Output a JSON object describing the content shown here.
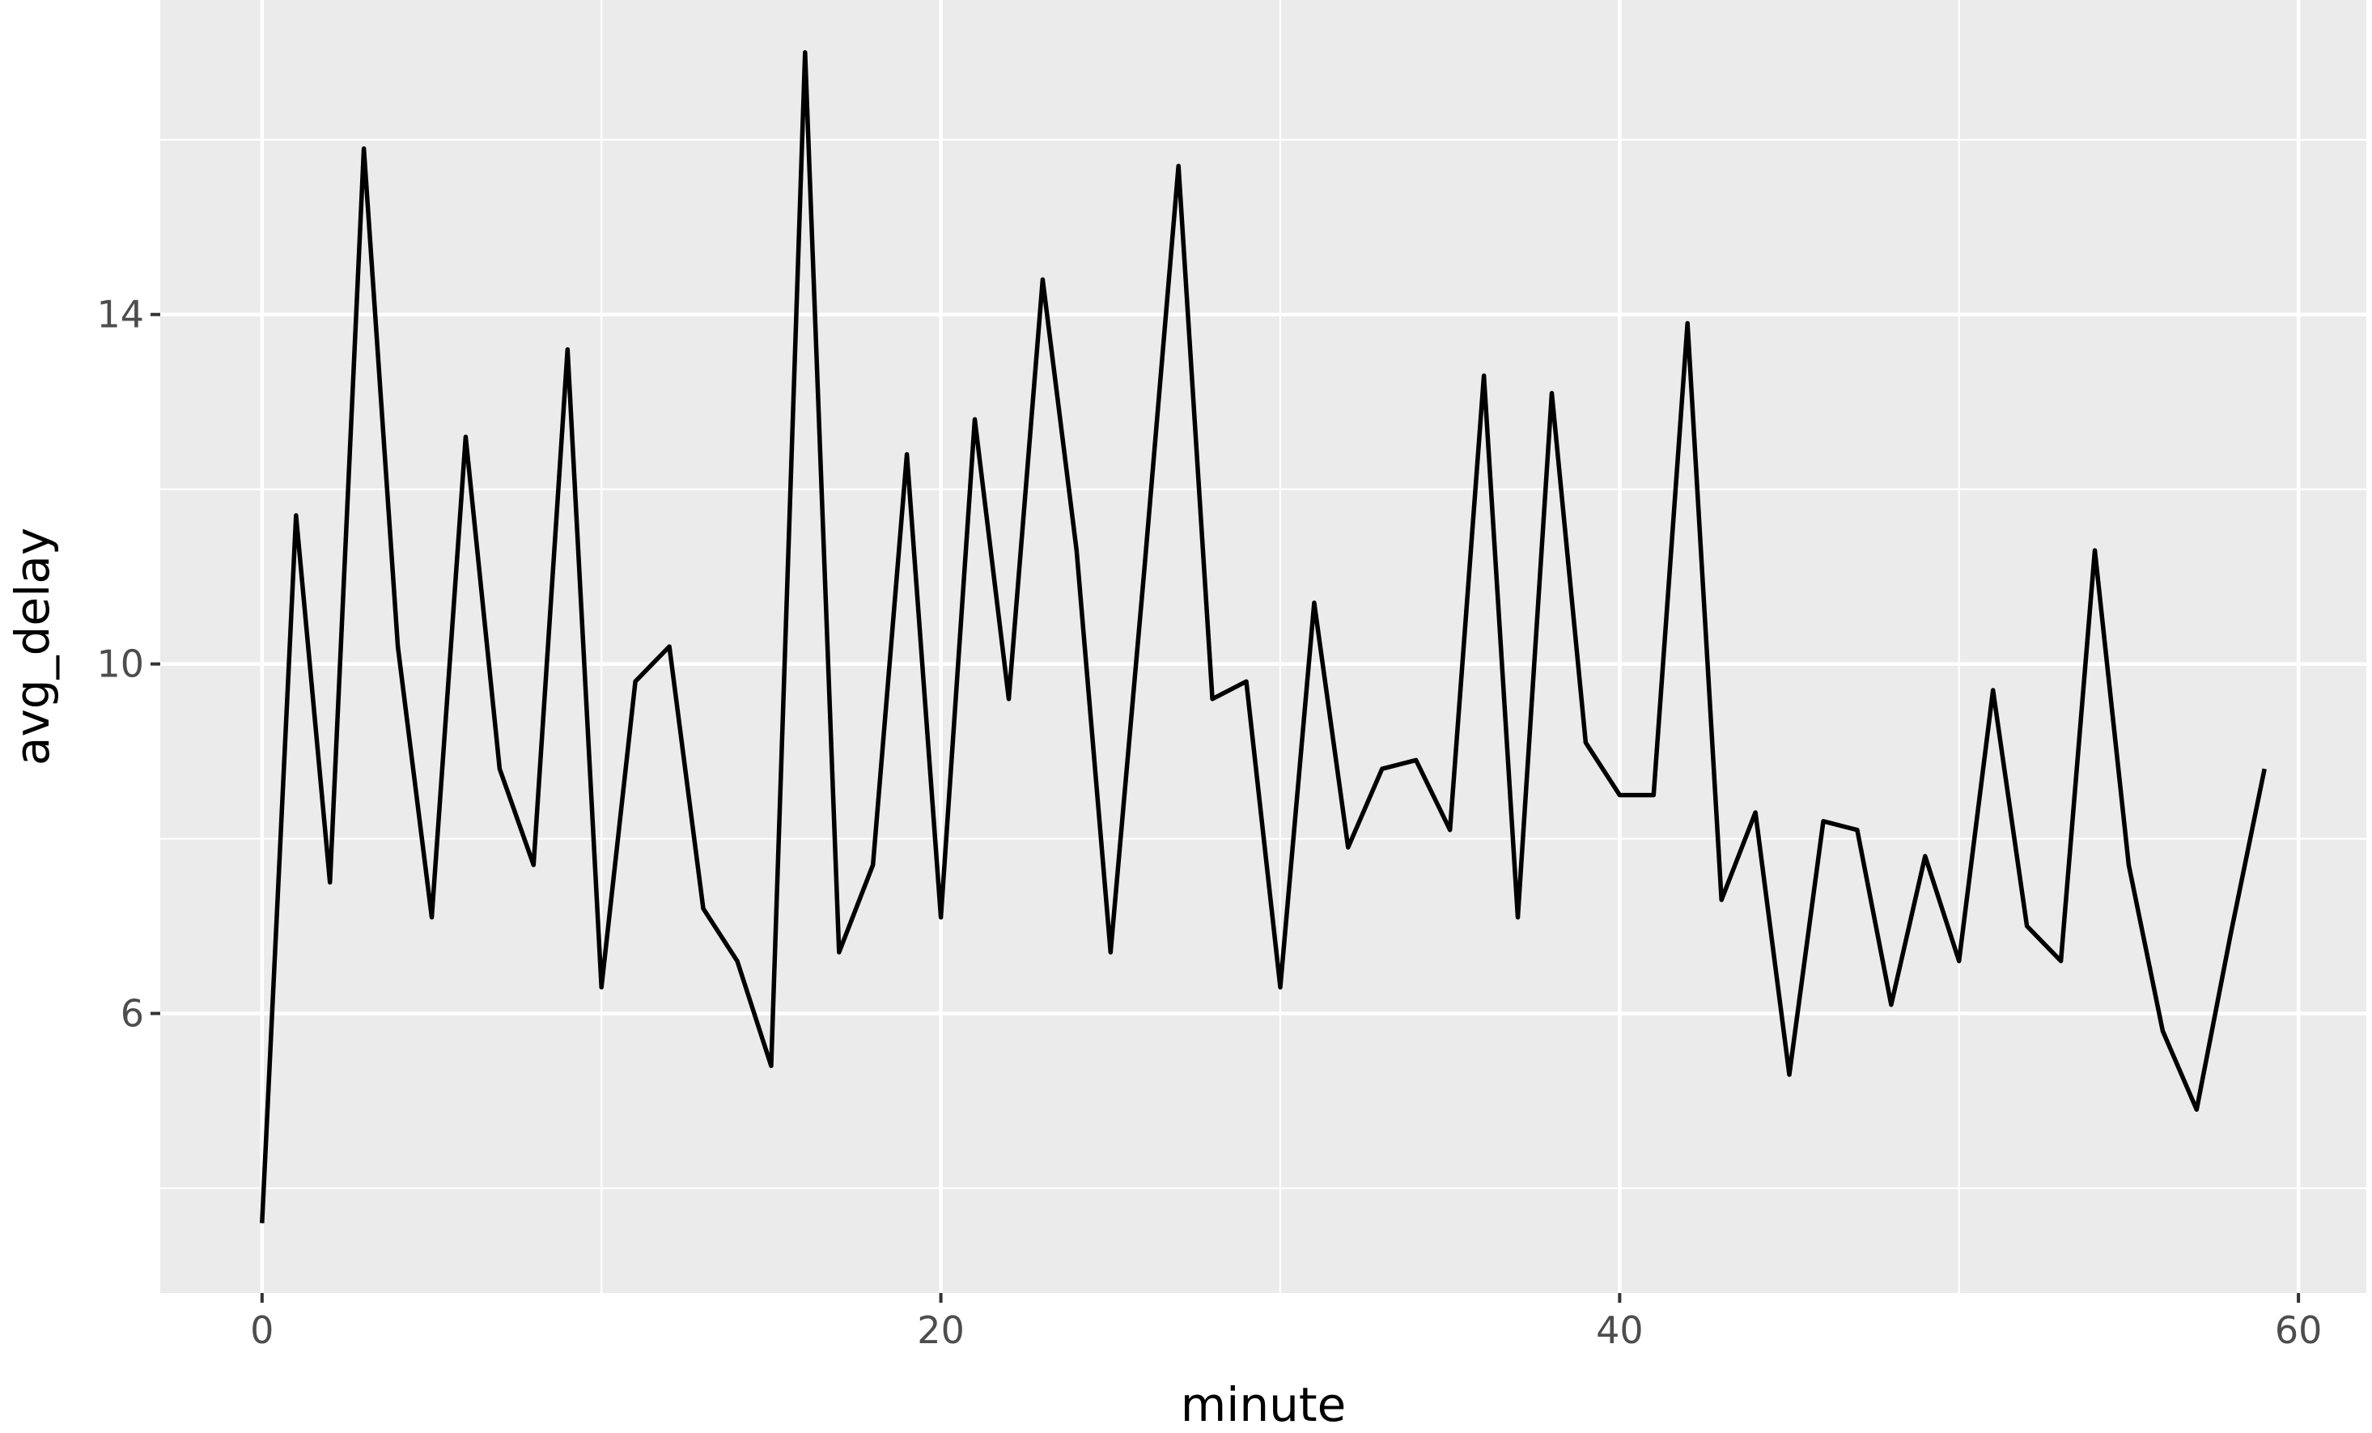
{
  "chart_data": {
    "type": "line",
    "title": "",
    "xlabel": "minute",
    "ylabel": "avg_delay",
    "xlim": [
      -3,
      62
    ],
    "ylim": [
      2.8,
      17.6
    ],
    "x_ticks": [
      0,
      20,
      40,
      60
    ],
    "y_ticks": [
      6,
      10,
      14
    ],
    "x_minor_ticks": [
      10,
      30,
      50
    ],
    "y_minor_ticks": [
      4,
      8,
      12,
      16
    ],
    "x_tick_labels": [
      "0",
      "20",
      "40",
      "60"
    ],
    "y_tick_labels": [
      "6",
      "10",
      "14"
    ],
    "grid": true,
    "legend": "none",
    "series": [
      {
        "color": "#000000",
        "x": [
          0,
          1,
          2,
          3,
          4,
          5,
          6,
          7,
          8,
          9,
          10,
          11,
          12,
          13,
          14,
          15,
          16,
          17,
          18,
          19,
          20,
          21,
          22,
          23,
          24,
          25,
          26,
          27,
          28,
          29,
          30,
          31,
          32,
          33,
          34,
          35,
          36,
          37,
          38,
          39,
          40,
          41,
          42,
          43,
          44,
          45,
          46,
          47,
          48,
          49,
          50,
          51,
          52,
          53,
          54,
          55,
          56,
          57,
          58,
          59
        ],
        "y": [
          3.6,
          11.7,
          7.5,
          15.9,
          10.2,
          7.1,
          12.6,
          8.8,
          7.7,
          13.6,
          6.3,
          9.8,
          10.2,
          7.2,
          6.6,
          5.4,
          17.0,
          6.7,
          7.7,
          12.4,
          7.1,
          12.8,
          9.6,
          14.4,
          11.3,
          6.7,
          11.1,
          15.7,
          9.6,
          9.8,
          6.3,
          10.7,
          7.9,
          8.8,
          8.9,
          8.1,
          13.3,
          7.1,
          13.1,
          9.1,
          8.5,
          8.5,
          13.9,
          7.3,
          8.3,
          5.3,
          8.2,
          8.1,
          6.1,
          7.8,
          6.6,
          9.7,
          7.0,
          6.6,
          11.3,
          7.7,
          5.8,
          4.9,
          6.9,
          8.8
        ]
      }
    ]
  }
}
